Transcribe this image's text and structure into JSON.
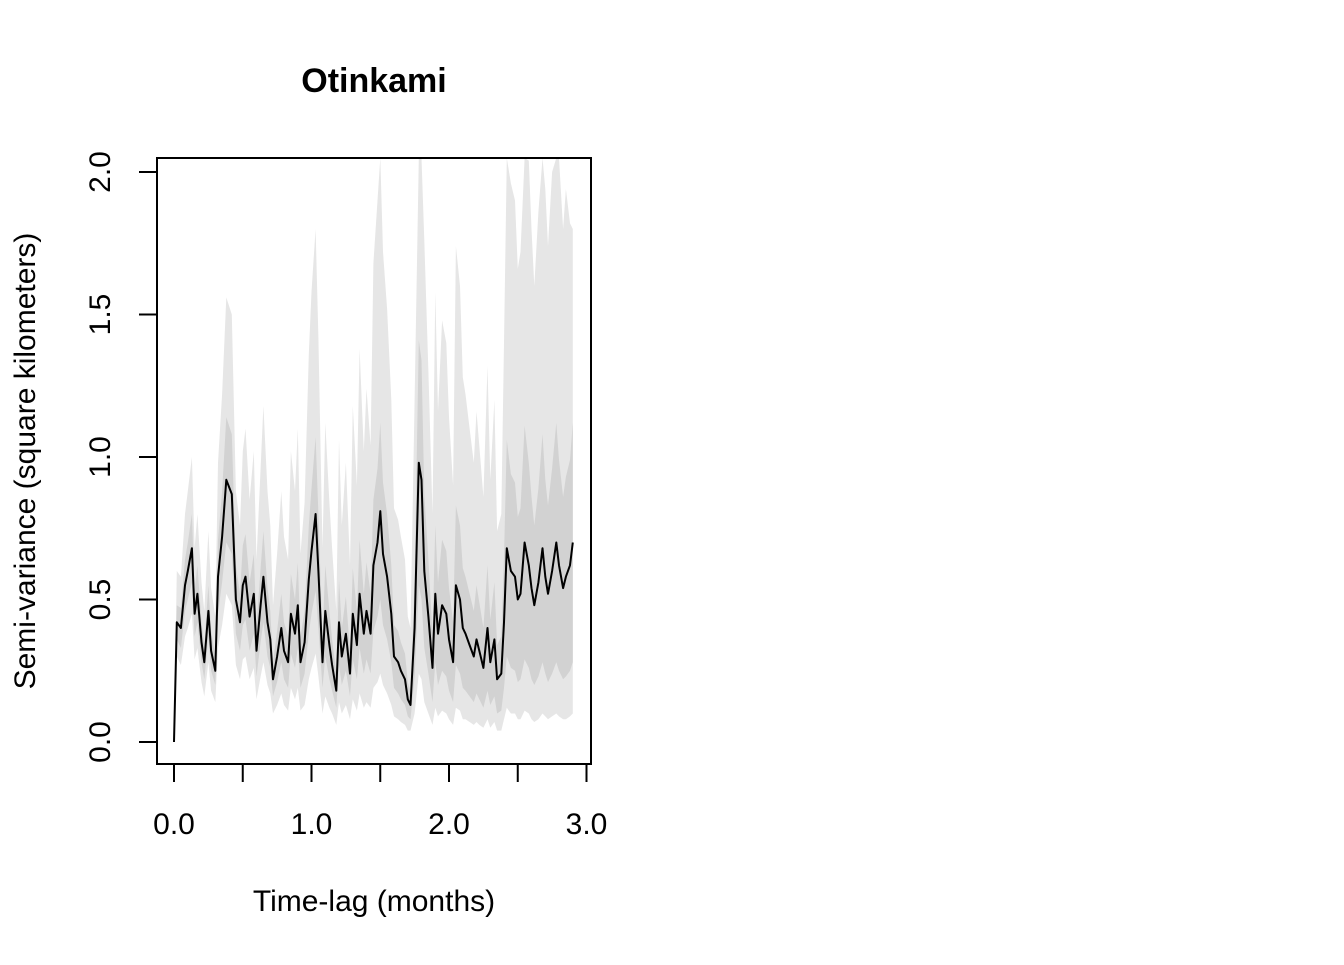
{
  "chart_data": {
    "type": "line",
    "title": "Otinkami",
    "xlabel": "Time-lag (months)",
    "ylabel": "Semi-variance (square kilometers)",
    "xlim": [
      0.0,
      3.0
    ],
    "ylim": [
      0.0,
      2.0
    ],
    "x_major_ticks": [
      0.0,
      1.0,
      2.0,
      3.0
    ],
    "x_minor_ticks": [
      0.5,
      1.5,
      2.5
    ],
    "x_tick_labels": [
      "0.0",
      "1.0",
      "2.0",
      "3.0"
    ],
    "y_ticks": [
      0.0,
      0.5,
      1.0,
      1.5,
      2.0
    ],
    "y_tick_labels": [
      "0.0",
      "0.5",
      "1.0",
      "1.5",
      "2.0"
    ],
    "grid": false,
    "colors": {
      "line": "#000000",
      "ci_outer": "#e6e6e6",
      "ci_inner": "#d2d2d2",
      "axes": "#000000",
      "background": "#ffffff"
    },
    "series": [
      {
        "x": [
          0.0,
          0.02,
          0.05,
          0.08,
          0.1,
          0.13,
          0.15,
          0.17,
          0.2,
          0.22,
          0.25,
          0.27,
          0.3,
          0.32,
          0.35,
          0.38,
          0.42,
          0.45,
          0.48,
          0.5,
          0.52,
          0.55,
          0.58,
          0.6,
          0.63,
          0.65,
          0.68,
          0.7,
          0.72,
          0.75,
          0.78,
          0.8,
          0.83,
          0.85,
          0.88,
          0.9,
          0.92,
          0.95,
          0.98,
          1.0,
          1.03,
          1.05,
          1.08,
          1.1,
          1.13,
          1.15,
          1.18,
          1.2,
          1.22,
          1.25,
          1.28,
          1.3,
          1.33,
          1.35,
          1.38,
          1.4,
          1.43,
          1.45,
          1.48,
          1.5,
          1.52,
          1.55,
          1.58,
          1.6,
          1.63,
          1.65,
          1.68,
          1.7,
          1.72,
          1.75,
          1.78,
          1.8,
          1.82,
          1.85,
          1.88,
          1.9,
          1.92,
          1.95,
          1.98,
          2.0,
          2.03,
          2.05,
          2.08,
          2.1,
          2.12,
          2.15,
          2.18,
          2.2,
          2.22,
          2.25,
          2.28,
          2.3,
          2.33,
          2.35,
          2.38,
          2.4,
          2.42,
          2.45,
          2.48,
          2.5,
          2.52,
          2.55,
          2.58,
          2.6,
          2.62,
          2.65,
          2.68,
          2.7,
          2.72,
          2.75,
          2.78,
          2.8,
          2.83,
          2.85,
          2.88,
          2.9
        ],
        "y": [
          0.0,
          0.42,
          0.4,
          0.55,
          0.6,
          0.68,
          0.45,
          0.52,
          0.35,
          0.28,
          0.46,
          0.32,
          0.25,
          0.58,
          0.72,
          0.92,
          0.87,
          0.5,
          0.42,
          0.55,
          0.58,
          0.44,
          0.52,
          0.32,
          0.48,
          0.58,
          0.42,
          0.36,
          0.22,
          0.3,
          0.4,
          0.32,
          0.28,
          0.45,
          0.38,
          0.48,
          0.28,
          0.35,
          0.57,
          0.67,
          0.8,
          0.6,
          0.28,
          0.46,
          0.34,
          0.27,
          0.18,
          0.42,
          0.3,
          0.38,
          0.24,
          0.45,
          0.34,
          0.52,
          0.38,
          0.46,
          0.38,
          0.62,
          0.7,
          0.81,
          0.66,
          0.58,
          0.45,
          0.3,
          0.28,
          0.25,
          0.22,
          0.15,
          0.13,
          0.4,
          0.98,
          0.92,
          0.6,
          0.44,
          0.26,
          0.52,
          0.38,
          0.48,
          0.45,
          0.36,
          0.28,
          0.55,
          0.5,
          0.4,
          0.38,
          0.34,
          0.3,
          0.36,
          0.32,
          0.26,
          0.4,
          0.28,
          0.36,
          0.22,
          0.24,
          0.42,
          0.68,
          0.6,
          0.58,
          0.5,
          0.52,
          0.7,
          0.62,
          0.54,
          0.48,
          0.56,
          0.68,
          0.58,
          0.52,
          0.6,
          0.7,
          0.62,
          0.54,
          0.58,
          0.62,
          0.7
        ],
        "ci_inner_low": [
          0.0,
          0.36,
          0.33,
          0.46,
          0.5,
          0.56,
          0.37,
          0.42,
          0.28,
          0.22,
          0.37,
          0.25,
          0.2,
          0.45,
          0.56,
          0.7,
          0.66,
          0.38,
          0.32,
          0.41,
          0.43,
          0.32,
          0.38,
          0.23,
          0.35,
          0.42,
          0.3,
          0.26,
          0.16,
          0.21,
          0.28,
          0.22,
          0.19,
          0.31,
          0.26,
          0.33,
          0.19,
          0.24,
          0.38,
          0.45,
          0.53,
          0.4,
          0.19,
          0.3,
          0.22,
          0.18,
          0.12,
          0.27,
          0.2,
          0.25,
          0.16,
          0.29,
          0.22,
          0.33,
          0.24,
          0.29,
          0.24,
          0.39,
          0.44,
          0.5,
          0.41,
          0.36,
          0.28,
          0.19,
          0.17,
          0.15,
          0.13,
          0.09,
          0.08,
          0.23,
          0.55,
          0.5,
          0.33,
          0.24,
          0.14,
          0.28,
          0.2,
          0.25,
          0.23,
          0.18,
          0.14,
          0.27,
          0.24,
          0.19,
          0.18,
          0.16,
          0.14,
          0.17,
          0.15,
          0.12,
          0.18,
          0.13,
          0.16,
          0.1,
          0.11,
          0.19,
          0.3,
          0.26,
          0.25,
          0.21,
          0.22,
          0.29,
          0.26,
          0.22,
          0.2,
          0.23,
          0.28,
          0.24,
          0.21,
          0.24,
          0.28,
          0.25,
          0.22,
          0.23,
          0.25,
          0.28
        ],
        "ci_inner_high": [
          0.0,
          0.48,
          0.47,
          0.64,
          0.7,
          0.8,
          0.53,
          0.62,
          0.42,
          0.34,
          0.55,
          0.39,
          0.3,
          0.71,
          0.88,
          1.14,
          1.08,
          0.62,
          0.52,
          0.69,
          0.73,
          0.56,
          0.66,
          0.41,
          0.61,
          0.74,
          0.54,
          0.46,
          0.28,
          0.39,
          0.52,
          0.42,
          0.37,
          0.59,
          0.5,
          0.63,
          0.37,
          0.46,
          0.76,
          0.89,
          1.07,
          0.8,
          0.37,
          0.62,
          0.46,
          0.36,
          0.24,
          0.57,
          0.4,
          0.51,
          0.32,
          0.61,
          0.46,
          0.71,
          0.52,
          0.63,
          0.52,
          0.85,
          0.96,
          1.12,
          0.91,
          0.8,
          0.62,
          0.41,
          0.39,
          0.35,
          0.31,
          0.21,
          0.18,
          0.57,
          1.41,
          1.34,
          0.87,
          0.64,
          0.38,
          0.76,
          0.56,
          0.71,
          0.67,
          0.54,
          0.42,
          0.83,
          0.76,
          0.61,
          0.58,
          0.52,
          0.46,
          0.55,
          0.49,
          0.4,
          0.62,
          0.43,
          0.56,
          0.34,
          0.37,
          0.65,
          1.06,
          0.94,
          0.91,
          0.79,
          0.82,
          1.11,
          0.98,
          0.86,
          0.76,
          0.89,
          1.08,
          0.92,
          0.83,
          0.96,
          1.12,
          0.99,
          0.86,
          0.93,
          0.99,
          1.12
        ],
        "ci_outer_low": [
          0.0,
          0.3,
          0.27,
          0.37,
          0.4,
          0.45,
          0.29,
          0.33,
          0.21,
          0.16,
          0.28,
          0.18,
          0.14,
          0.33,
          0.41,
          0.52,
          0.48,
          0.27,
          0.22,
          0.29,
          0.3,
          0.22,
          0.26,
          0.15,
          0.23,
          0.28,
          0.2,
          0.17,
          0.1,
          0.13,
          0.17,
          0.13,
          0.11,
          0.19,
          0.15,
          0.19,
          0.11,
          0.13,
          0.22,
          0.26,
          0.31,
          0.23,
          0.1,
          0.16,
          0.12,
          0.1,
          0.06,
          0.14,
          0.1,
          0.13,
          0.08,
          0.15,
          0.11,
          0.17,
          0.12,
          0.14,
          0.12,
          0.19,
          0.21,
          0.24,
          0.2,
          0.17,
          0.13,
          0.09,
          0.08,
          0.07,
          0.06,
          0.04,
          0.04,
          0.1,
          0.24,
          0.22,
          0.14,
          0.1,
          0.06,
          0.12,
          0.09,
          0.11,
          0.1,
          0.08,
          0.06,
          0.12,
          0.11,
          0.08,
          0.08,
          0.07,
          0.06,
          0.07,
          0.06,
          0.05,
          0.08,
          0.05,
          0.07,
          0.04,
          0.04,
          0.08,
          0.12,
          0.1,
          0.1,
          0.08,
          0.08,
          0.11,
          0.1,
          0.08,
          0.07,
          0.08,
          0.1,
          0.09,
          0.08,
          0.09,
          0.1,
          0.09,
          0.08,
          0.08,
          0.09,
          0.1
        ],
        "ci_outer_high": [
          0.0,
          0.6,
          0.58,
          0.8,
          0.88,
          1.0,
          0.68,
          0.8,
          0.56,
          0.46,
          0.74,
          0.54,
          0.44,
          0.98,
          1.22,
          1.56,
          1.5,
          0.88,
          0.76,
          1.02,
          1.1,
          0.85,
          1.02,
          0.64,
          0.96,
          1.18,
          0.88,
          0.76,
          0.48,
          0.66,
          0.88,
          0.72,
          0.64,
          1.02,
          0.88,
          1.1,
          0.66,
          0.84,
          1.36,
          1.58,
          1.8,
          1.42,
          0.68,
          1.12,
          0.84,
          0.68,
          0.46,
          1.06,
          0.76,
          0.98,
          0.62,
          1.18,
          0.9,
          1.38,
          1.02,
          1.24,
          1.04,
          1.68,
          1.9,
          2.05,
          1.72,
          1.52,
          1.2,
          0.82,
          0.78,
          0.72,
          0.64,
          0.44,
          0.4,
          1.2,
          2.05,
          2.05,
          1.76,
          1.3,
          0.8,
          1.58,
          1.16,
          1.48,
          1.4,
          1.14,
          0.9,
          1.74,
          1.6,
          1.28,
          1.22,
          1.1,
          0.98,
          1.16,
          1.04,
          0.86,
          1.32,
          0.92,
          1.2,
          0.74,
          0.8,
          1.4,
          2.05,
          1.96,
          1.9,
          1.66,
          1.72,
          2.05,
          2.04,
          1.8,
          1.6,
          1.86,
          2.05,
          1.94,
          1.74,
          2.0,
          2.05,
          2.05,
          1.8,
          1.94,
          1.82,
          1.8
        ]
      }
    ]
  }
}
